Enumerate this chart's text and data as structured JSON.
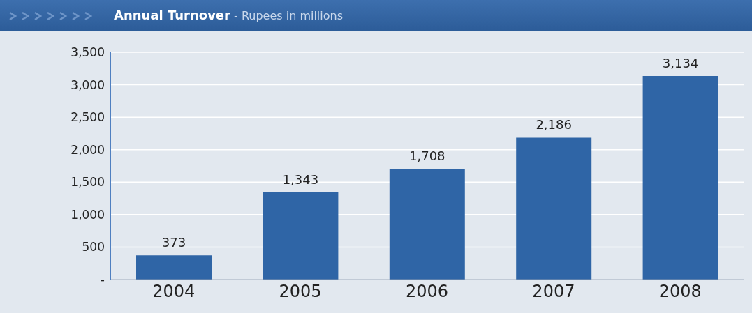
{
  "chart_data": {
    "type": "bar",
    "title": "Annual Turnover",
    "subtitle": "- Rupees in millions",
    "categories": [
      "2004",
      "2005",
      "2006",
      "2007",
      "2008"
    ],
    "values": [
      373,
      1343,
      1708,
      2186,
      3134
    ],
    "value_labels": [
      "373",
      "1,343",
      "1,708",
      "2,186",
      "3,134"
    ],
    "color": "#2f65a6",
    "ylim": [
      0,
      3500
    ],
    "yticks": [
      {
        "value": 0,
        "label": "-"
      },
      500,
      {
        "value": 1000,
        "label": "1,000"
      },
      {
        "value": 1500,
        "label": "1,500"
      },
      {
        "value": 2000,
        "label": "2,000"
      },
      {
        "value": 2500,
        "label": "2,500"
      },
      {
        "value": 3000,
        "label": "3,000"
      },
      {
        "value": 3500,
        "label": "3,500"
      }
    ],
    "grid": "y"
  }
}
